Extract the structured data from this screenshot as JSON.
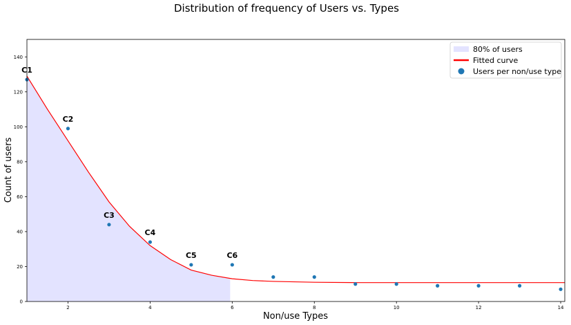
{
  "chart_data": {
    "type": "scatter",
    "title": "Distribution of frequency of Users vs. Types",
    "xlabel": "Non/use Types",
    "ylabel": "Count of users",
    "xlim": [
      1,
      14.1
    ],
    "ylim": [
      0,
      150
    ],
    "xticks": [
      2,
      4,
      6,
      8,
      10,
      12,
      14
    ],
    "yticks": [
      0,
      20,
      40,
      60,
      80,
      100,
      120,
      140
    ],
    "grid": false,
    "legend_position": "top-right",
    "series": [
      {
        "name": "Users per non/use type",
        "kind": "scatter",
        "color": "#1f77b4",
        "x": [
          1,
          2,
          3,
          4,
          5,
          6,
          7,
          8,
          9,
          10,
          11,
          12,
          13,
          14
        ],
        "y": [
          127,
          99,
          44,
          34,
          21,
          21,
          14,
          14,
          10,
          10,
          9,
          9,
          9,
          7
        ]
      },
      {
        "name": "Fitted curve",
        "kind": "line",
        "color": "#ff0000",
        "x": [
          1,
          1.5,
          2,
          2.5,
          3,
          3.5,
          4,
          4.5,
          5,
          5.5,
          6,
          6.5,
          7,
          8,
          9,
          10,
          11,
          12,
          13,
          14.1
        ],
        "y": [
          129,
          110,
          92,
          74,
          57,
          43,
          32,
          24,
          18,
          15,
          13,
          12,
          11.5,
          11,
          10.8,
          10.8,
          10.8,
          10.8,
          10.8,
          10.8
        ]
      },
      {
        "name": "80% of users",
        "kind": "area",
        "color": "#e3e3ff",
        "x_range": [
          1,
          5.95
        ]
      }
    ],
    "annotations": [
      {
        "text": "C1",
        "x": 1,
        "y": 127
      },
      {
        "text": "C2",
        "x": 2,
        "y": 99
      },
      {
        "text": "C3",
        "x": 3,
        "y": 44
      },
      {
        "text": "C4",
        "x": 4,
        "y": 34
      },
      {
        "text": "C5",
        "x": 5,
        "y": 21
      },
      {
        "text": "C6",
        "x": 6,
        "y": 21
      }
    ],
    "legend": [
      "80% of users",
      "Fitted curve",
      "Users per non/use type"
    ]
  }
}
